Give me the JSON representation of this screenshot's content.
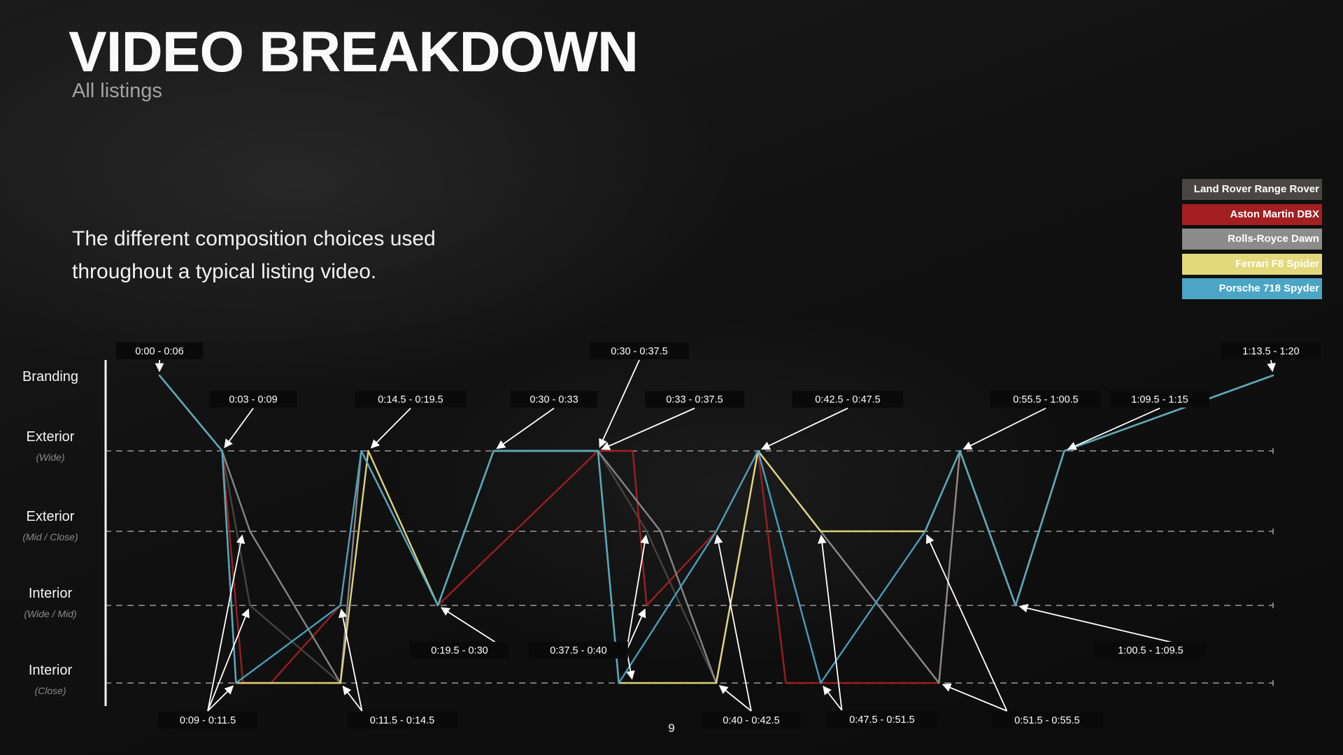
{
  "slide": {
    "title": "VIDEO BREAKDOWN",
    "subtitle": "All listings",
    "description": "The different composition choices used throughout a typical listing video.",
    "page_number": "9"
  },
  "chart_data": {
    "type": "line",
    "y_categories": [
      {
        "label": "Branding",
        "sublabel": ""
      },
      {
        "label": "Exterior",
        "sublabel": "(Wide)"
      },
      {
        "label": "Exterior",
        "sublabel": "(Mid / Close)"
      },
      {
        "label": "Interior",
        "sublabel": "(Wide / Mid)"
      },
      {
        "label": "Interior",
        "sublabel": "(Close)"
      }
    ],
    "x_unit": "seconds",
    "xlim": [
      0,
      80
    ],
    "grid": "dashed horizontal lines at Exterior (Wide), Exterior (Mid / Close), Interior (Wide / Mid), Interior (Close)",
    "legend_position": "top-right",
    "series": [
      {
        "name": "Land Rover Range Rover",
        "color": "#4a4645",
        "points": [
          [
            0,
            0
          ],
          [
            4.5,
            1
          ],
          [
            6.5,
            3
          ],
          [
            13,
            4
          ],
          [
            15,
            1
          ],
          [
            20,
            3
          ],
          [
            24,
            1
          ],
          [
            31.5,
            1
          ],
          [
            35,
            2
          ],
          [
            40,
            4
          ],
          [
            43,
            1
          ],
          [
            47.5,
            2
          ],
          [
            56,
            4
          ],
          [
            57.5,
            1
          ],
          [
            61.5,
            3
          ],
          [
            65,
            1
          ],
          [
            80,
            0
          ]
        ]
      },
      {
        "name": "Aston Martin DBX",
        "color": "#a31f22",
        "points": [
          [
            0,
            0
          ],
          [
            4.5,
            1
          ],
          [
            6,
            4
          ],
          [
            8,
            4
          ],
          [
            13,
            3
          ],
          [
            14.5,
            1
          ],
          [
            20,
            3
          ],
          [
            31.5,
            1
          ],
          [
            34,
            1
          ],
          [
            35,
            3
          ],
          [
            40,
            2
          ],
          [
            43,
            1
          ],
          [
            45,
            4
          ],
          [
            56,
            4
          ],
          [
            57.5,
            1
          ],
          [
            61.5,
            3
          ],
          [
            65,
            1
          ],
          [
            80,
            0
          ]
        ]
      },
      {
        "name": "Rolls-Royce Dawn",
        "color": "#8c8c8c",
        "points": [
          [
            0,
            0
          ],
          [
            4.5,
            1
          ],
          [
            6.5,
            2
          ],
          [
            13,
            4
          ],
          [
            14.5,
            1
          ],
          [
            20,
            3
          ],
          [
            24,
            1
          ],
          [
            31.5,
            1
          ],
          [
            36,
            2
          ],
          [
            40,
            4
          ],
          [
            43,
            1
          ],
          [
            47.5,
            2
          ],
          [
            56,
            4
          ],
          [
            57.5,
            1
          ],
          [
            61.5,
            3
          ],
          [
            65,
            1
          ],
          [
            80,
            0
          ]
        ]
      },
      {
        "name": "Ferrari F8 Spider",
        "color": "#e3d97a",
        "points": [
          [
            0,
            0
          ],
          [
            4.5,
            1
          ],
          [
            5.5,
            4
          ],
          [
            13,
            4
          ],
          [
            15,
            1
          ],
          [
            20,
            3
          ],
          [
            24,
            1
          ],
          [
            31.5,
            1
          ],
          [
            33,
            4
          ],
          [
            40,
            4
          ],
          [
            43,
            1
          ],
          [
            47.5,
            2
          ],
          [
            55,
            2
          ],
          [
            57.5,
            1
          ],
          [
            61.5,
            3
          ],
          [
            65,
            1
          ],
          [
            80,
            0
          ]
        ]
      },
      {
        "name": "Porsche 718 Spyder",
        "color": "#4aa6c4",
        "points": [
          [
            0,
            0
          ],
          [
            4.5,
            1
          ],
          [
            5.5,
            4
          ],
          [
            13,
            3
          ],
          [
            14.5,
            1
          ],
          [
            20,
            3
          ],
          [
            24,
            1
          ],
          [
            31.5,
            1
          ],
          [
            33,
            4
          ],
          [
            40,
            2
          ],
          [
            43,
            1
          ],
          [
            47.5,
            4
          ],
          [
            55,
            2
          ],
          [
            57.5,
            1
          ],
          [
            61.5,
            3
          ],
          [
            65,
            1
          ],
          [
            80,
            0
          ]
        ]
      }
    ],
    "annotations": [
      {
        "text": "0:00 - 0:06",
        "targets": [
          [
            0,
            0
          ]
        ]
      },
      {
        "text": "0:03 - 0:09",
        "targets": [
          [
            4.5,
            1
          ]
        ]
      },
      {
        "text": "0:14.5 - 0:19.5",
        "targets": [
          [
            15,
            1
          ]
        ]
      },
      {
        "text": "0:30 - 0:33",
        "targets": [
          [
            24,
            1
          ]
        ]
      },
      {
        "text": "0:30 - 0:37.5",
        "targets": [
          [
            31.5,
            1
          ]
        ]
      },
      {
        "text": "0:33 - 0:37.5",
        "targets": [
          [
            31.5,
            1
          ]
        ]
      },
      {
        "text": "0:42.5 - 0:47.5",
        "targets": [
          [
            43,
            1
          ]
        ]
      },
      {
        "text": "0:55.5 - 1:00.5",
        "targets": [
          [
            57.5,
            1
          ]
        ]
      },
      {
        "text": "1:09.5 - 1:15",
        "targets": [
          [
            65,
            1
          ]
        ]
      },
      {
        "text": "1:13.5 - 1:20",
        "targets": [
          [
            80,
            0
          ]
        ]
      },
      {
        "text": "0:19.5 - 0:30",
        "targets": [
          [
            20,
            3
          ]
        ]
      },
      {
        "text": "0:37.5 - 0:40",
        "targets": [
          [
            35,
            2
          ],
          [
            35,
            3
          ],
          [
            34,
            4
          ]
        ]
      },
      {
        "text": "1:00.5 - 1:09.5",
        "targets": [
          [
            61.5,
            3
          ]
        ]
      },
      {
        "text": "0:09 - 0:11.5",
        "targets": [
          [
            6,
            2
          ],
          [
            6.5,
            3
          ],
          [
            5.5,
            4
          ]
        ]
      },
      {
        "text": "0:11.5 - 0:14.5",
        "targets": [
          [
            13,
            3
          ],
          [
            13,
            4
          ]
        ]
      },
      {
        "text": "0:40 - 0:42.5",
        "targets": [
          [
            40,
            2
          ],
          [
            40,
            4
          ]
        ]
      },
      {
        "text": "0:47.5 - 0:51.5",
        "targets": [
          [
            47.5,
            2
          ],
          [
            47.5,
            4
          ]
        ]
      },
      {
        "text": "0:51.5 - 0:55.5",
        "targets": [
          [
            55,
            2
          ],
          [
            56,
            4
          ]
        ]
      }
    ]
  }
}
